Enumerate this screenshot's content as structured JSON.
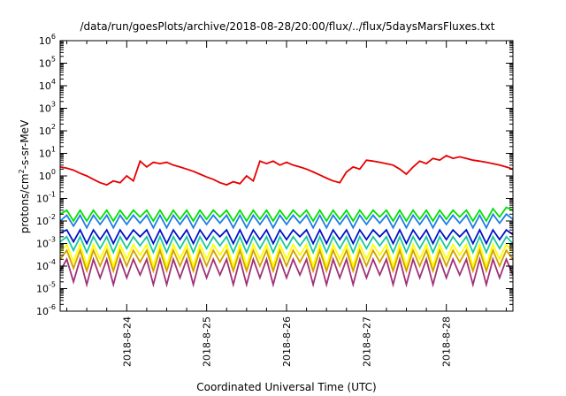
{
  "chart_data": {
    "type": "line",
    "title": "/data/run/goesPlots/archive/2018-08-28/20:00/flux/../flux/5daysMarsFluxes.txt",
    "xlabel": "Coordinated Universal Time (UTC)",
    "ylabel": "protons/cm2-s-sr-MeV",
    "ylabel_parts": {
      "pre": "protons/cm",
      "sup": "2",
      "post": "-s-sr-MeV"
    },
    "y_scale": "log",
    "ylim_exponent": [
      -6,
      6
    ],
    "ytick_exponents": [
      -6,
      -5,
      -4,
      -3,
      -2,
      -1,
      0,
      1,
      2,
      3,
      4,
      5,
      6
    ],
    "ytick_base": "10",
    "xlim": [
      "2018-08-23T04:00",
      "2018-08-28T20:00"
    ],
    "xtick_labels": [
      "2018-8-24",
      "2018-8-25",
      "2018-8-26",
      "2018-8-27",
      "2018-8-28"
    ],
    "grid": false,
    "legend": "none",
    "x": [
      "2018-08-23T04:00",
      "2018-08-23T06:00",
      "2018-08-23T08:00",
      "2018-08-23T10:00",
      "2018-08-23T12:00",
      "2018-08-23T14:00",
      "2018-08-23T16:00",
      "2018-08-23T18:00",
      "2018-08-23T20:00",
      "2018-08-23T22:00",
      "2018-08-24T00:00",
      "2018-08-24T02:00",
      "2018-08-24T04:00",
      "2018-08-24T06:00",
      "2018-08-24T08:00",
      "2018-08-24T10:00",
      "2018-08-24T12:00",
      "2018-08-24T14:00",
      "2018-08-24T16:00",
      "2018-08-24T18:00",
      "2018-08-24T20:00",
      "2018-08-24T22:00",
      "2018-08-25T00:00",
      "2018-08-25T02:00",
      "2018-08-25T04:00",
      "2018-08-25T06:00",
      "2018-08-25T08:00",
      "2018-08-25T10:00",
      "2018-08-25T12:00",
      "2018-08-25T14:00",
      "2018-08-25T16:00",
      "2018-08-25T18:00",
      "2018-08-25T20:00",
      "2018-08-25T22:00",
      "2018-08-26T00:00",
      "2018-08-26T02:00",
      "2018-08-26T04:00",
      "2018-08-26T06:00",
      "2018-08-26T08:00",
      "2018-08-26T10:00",
      "2018-08-26T12:00",
      "2018-08-26T14:00",
      "2018-08-26T16:00",
      "2018-08-26T18:00",
      "2018-08-26T20:00",
      "2018-08-26T22:00",
      "2018-08-27T00:00",
      "2018-08-27T02:00",
      "2018-08-27T04:00",
      "2018-08-27T06:00",
      "2018-08-27T08:00",
      "2018-08-27T10:00",
      "2018-08-27T12:00",
      "2018-08-27T14:00",
      "2018-08-27T16:00",
      "2018-08-27T18:00",
      "2018-08-27T20:00",
      "2018-08-27T22:00",
      "2018-08-28T00:00",
      "2018-08-28T02:00",
      "2018-08-28T04:00",
      "2018-08-28T06:00",
      "2018-08-28T08:00",
      "2018-08-28T10:00",
      "2018-08-28T12:00",
      "2018-08-28T14:00",
      "2018-08-28T16:00",
      "2018-08-28T18:00",
      "2018-08-28T20:00"
    ],
    "series": [
      {
        "color": "#00e000",
        "values": [
          0.02,
          0.03,
          0.01,
          0.03,
          0.01,
          0.03,
          0.012,
          0.03,
          0.01,
          0.03,
          0.012,
          0.03,
          0.015,
          0.03,
          0.01,
          0.03,
          0.01,
          0.03,
          0.012,
          0.03,
          0.01,
          0.03,
          0.012,
          0.03,
          0.015,
          0.03,
          0.01,
          0.03,
          0.01,
          0.03,
          0.012,
          0.03,
          0.01,
          0.03,
          0.012,
          0.03,
          0.015,
          0.03,
          0.01,
          0.03,
          0.01,
          0.03,
          0.012,
          0.03,
          0.01,
          0.03,
          0.012,
          0.03,
          0.015,
          0.03,
          0.01,
          0.03,
          0.01,
          0.03,
          0.012,
          0.03,
          0.01,
          0.03,
          0.012,
          0.03,
          0.015,
          0.03,
          0.01,
          0.03,
          0.01,
          0.035,
          0.015,
          0.04,
          0.03
        ]
      },
      {
        "color": "#1e7de6",
        "values": [
          0.01,
          0.018,
          0.006,
          0.018,
          0.005,
          0.018,
          0.007,
          0.018,
          0.005,
          0.018,
          0.007,
          0.018,
          0.008,
          0.018,
          0.005,
          0.018,
          0.005,
          0.018,
          0.007,
          0.018,
          0.005,
          0.018,
          0.007,
          0.018,
          0.008,
          0.018,
          0.005,
          0.018,
          0.005,
          0.018,
          0.007,
          0.018,
          0.005,
          0.018,
          0.007,
          0.018,
          0.008,
          0.018,
          0.005,
          0.018,
          0.005,
          0.018,
          0.007,
          0.018,
          0.005,
          0.018,
          0.007,
          0.018,
          0.008,
          0.018,
          0.005,
          0.018,
          0.005,
          0.018,
          0.007,
          0.018,
          0.005,
          0.018,
          0.007,
          0.018,
          0.008,
          0.018,
          0.005,
          0.018,
          0.005,
          0.02,
          0.008,
          0.02,
          0.012
        ]
      },
      {
        "color": "#0014c8",
        "values": [
          0.003,
          0.004,
          0.0012,
          0.004,
          0.001,
          0.004,
          0.0015,
          0.004,
          0.001,
          0.004,
          0.0015,
          0.004,
          0.002,
          0.004,
          0.001,
          0.004,
          0.001,
          0.004,
          0.0015,
          0.004,
          0.001,
          0.004,
          0.0015,
          0.004,
          0.002,
          0.004,
          0.001,
          0.004,
          0.001,
          0.004,
          0.0015,
          0.004,
          0.001,
          0.004,
          0.0015,
          0.004,
          0.002,
          0.004,
          0.001,
          0.004,
          0.001,
          0.004,
          0.0015,
          0.004,
          0.001,
          0.004,
          0.0015,
          0.004,
          0.002,
          0.004,
          0.001,
          0.004,
          0.001,
          0.004,
          0.0015,
          0.004,
          0.001,
          0.004,
          0.0015,
          0.004,
          0.002,
          0.004,
          0.001,
          0.004,
          0.001,
          0.004,
          0.0015,
          0.004,
          0.0025
        ]
      },
      {
        "color": "#18c8a0",
        "values": [
          0.0012,
          0.002,
          0.0005,
          0.002,
          0.0004,
          0.002,
          0.0006,
          0.002,
          0.0004,
          0.002,
          0.0006,
          0.002,
          0.0008,
          0.002,
          0.0004,
          0.002,
          0.0004,
          0.002,
          0.0006,
          0.002,
          0.0004,
          0.002,
          0.0006,
          0.002,
          0.0008,
          0.002,
          0.0004,
          0.002,
          0.0004,
          0.002,
          0.0006,
          0.002,
          0.0004,
          0.002,
          0.0006,
          0.002,
          0.0008,
          0.002,
          0.0004,
          0.002,
          0.0004,
          0.002,
          0.0006,
          0.002,
          0.0004,
          0.002,
          0.0006,
          0.002,
          0.0008,
          0.002,
          0.0004,
          0.002,
          0.0004,
          0.002,
          0.0006,
          0.002,
          0.0004,
          0.002,
          0.0006,
          0.002,
          0.0008,
          0.002,
          0.0004,
          0.002,
          0.0004,
          0.002,
          0.0006,
          0.002,
          0.001
        ]
      },
      {
        "color": "#ffff00",
        "values": [
          0.0004,
          0.0009,
          0.00015,
          0.0009,
          0.0001,
          0.0009,
          0.0002,
          0.0009,
          0.0001,
          0.0009,
          0.0002,
          0.0009,
          0.0003,
          0.0009,
          0.0001,
          0.0009,
          0.0001,
          0.0009,
          0.0002,
          0.0009,
          0.0001,
          0.0009,
          0.0002,
          0.0009,
          0.0003,
          0.0009,
          0.0001,
          0.0009,
          0.0001,
          0.0009,
          0.0002,
          0.0009,
          0.0001,
          0.0009,
          0.0002,
          0.0009,
          0.0003,
          0.0009,
          0.0001,
          0.0009,
          0.0001,
          0.0009,
          0.0002,
          0.0009,
          0.0001,
          0.0009,
          0.0002,
          0.0009,
          0.0003,
          0.0009,
          0.0001,
          0.0009,
          0.0001,
          0.0009,
          0.0002,
          0.0009,
          0.0001,
          0.0009,
          0.0002,
          0.0009,
          0.0003,
          0.0009,
          0.0001,
          0.0009,
          0.0001,
          0.0009,
          0.0002,
          0.0009,
          0.0004
        ]
      },
      {
        "color": "#d2a000",
        "values": [
          0.0002,
          0.0005,
          8e-05,
          0.0005,
          6e-05,
          0.0005,
          0.0001,
          0.0005,
          6e-05,
          0.0005,
          0.0001,
          0.0005,
          0.00015,
          0.0005,
          6e-05,
          0.0005,
          6e-05,
          0.0005,
          0.0001,
          0.0005,
          6e-05,
          0.0005,
          0.0001,
          0.0005,
          0.00015,
          0.0005,
          6e-05,
          0.0005,
          6e-05,
          0.0005,
          0.0001,
          0.0005,
          6e-05,
          0.0005,
          0.0001,
          0.0005,
          0.00015,
          0.0005,
          6e-05,
          0.0005,
          6e-05,
          0.0005,
          0.0001,
          0.0005,
          6e-05,
          0.0005,
          0.0001,
          0.0005,
          0.00015,
          0.0005,
          6e-05,
          0.0005,
          6e-05,
          0.0005,
          0.0001,
          0.0005,
          6e-05,
          0.0005,
          0.0001,
          0.0005,
          0.00015,
          0.0005,
          6e-05,
          0.0005,
          6e-05,
          0.0005,
          0.0001,
          0.0005,
          0.0002
        ]
      },
      {
        "color": "#a03278",
        "values": [
          6e-05,
          0.0002,
          2e-05,
          0.0002,
          1.5e-05,
          0.0002,
          3e-05,
          0.0002,
          1.5e-05,
          0.0002,
          3e-05,
          0.0002,
          4e-05,
          0.0002,
          1.5e-05,
          0.0002,
          1.5e-05,
          0.0002,
          3e-05,
          0.0002,
          1.5e-05,
          0.0002,
          3e-05,
          0.0002,
          4e-05,
          0.0002,
          1.5e-05,
          0.0002,
          1.5e-05,
          0.0002,
          3e-05,
          0.0002,
          1.5e-05,
          0.0002,
          3e-05,
          0.0002,
          4e-05,
          0.0002,
          1.5e-05,
          0.0002,
          1.5e-05,
          0.0002,
          3e-05,
          0.0002,
          1.5e-05,
          0.0002,
          3e-05,
          0.0002,
          4e-05,
          0.0002,
          1.5e-05,
          0.0002,
          1.5e-05,
          0.0002,
          3e-05,
          0.0002,
          1.5e-05,
          0.0002,
          3e-05,
          0.0002,
          4e-05,
          0.0002,
          1.5e-05,
          0.0002,
          1.5e-05,
          0.0002,
          3e-05,
          0.0002,
          4e-05
        ]
      },
      {
        "color": "#e60000",
        "values": [
          2.5,
          2.2,
          1.8,
          1.3,
          1.0,
          0.7,
          0.5,
          0.4,
          0.6,
          0.5,
          1.0,
          0.6,
          4.5,
          2.5,
          4.0,
          3.5,
          4.0,
          3.0,
          2.5,
          2.0,
          1.6,
          1.2,
          0.9,
          0.7,
          0.5,
          0.4,
          0.55,
          0.45,
          1.0,
          0.6,
          4.5,
          3.5,
          4.5,
          3.0,
          4.0,
          3.0,
          2.5,
          2.0,
          1.5,
          1.1,
          0.8,
          0.6,
          0.5,
          1.5,
          2.5,
          2.0,
          5.0,
          4.5,
          4.0,
          3.5,
          3.0,
          2.0,
          1.2,
          2.5,
          4.5,
          3.5,
          6.0,
          5.0,
          8.0,
          6.0,
          7.0,
          6.0,
          5.0,
          4.5,
          4.0,
          3.5,
          3.0,
          2.5,
          2.0
        ]
      }
    ]
  }
}
